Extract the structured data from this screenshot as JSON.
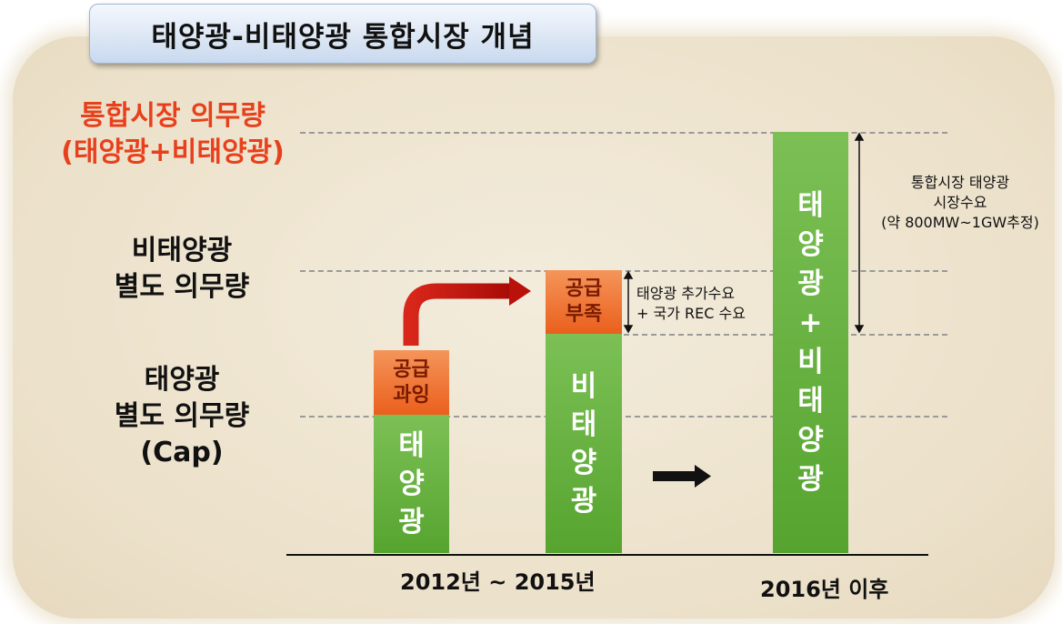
{
  "title": "태양광-비태양광 통합시장 개념",
  "left_labels": {
    "integrated_obligation": [
      "통합시장 의무량",
      "(태양광+비태양광)"
    ],
    "nonsolar_obligation": [
      "비태양광",
      "별도 의무량"
    ],
    "solar_obligation": [
      "태양광",
      "별도 의무량",
      "(Cap)"
    ]
  },
  "bars": {
    "solar": {
      "chars": [
        "태",
        "양",
        "광"
      ]
    },
    "surplus": {
      "lines": [
        "공급",
        "과잉"
      ]
    },
    "nonsolar": {
      "chars": [
        "비",
        "태",
        "양",
        "광"
      ]
    },
    "shortage": {
      "lines": [
        "공급",
        "부족"
      ]
    },
    "integrated": {
      "chars": [
        "태",
        "양",
        "광",
        "+",
        "비",
        "태",
        "양",
        "광"
      ]
    }
  },
  "notes": {
    "additional_demand": [
      "태양광 추가수요",
      "+ 국가 REC 수요"
    ],
    "integrated_demand": [
      "통합시장 태양광",
      "시장수요",
      "(약 800MW~1GW추정)"
    ]
  },
  "axis": {
    "period_1": "2012년 ~ 2015년",
    "period_2": "2016년 이후"
  },
  "colors": {
    "green": "#5aa834",
    "orange": "#ee6a26",
    "red_text": "#e8401c",
    "arrow_red": "#c0150a"
  }
}
